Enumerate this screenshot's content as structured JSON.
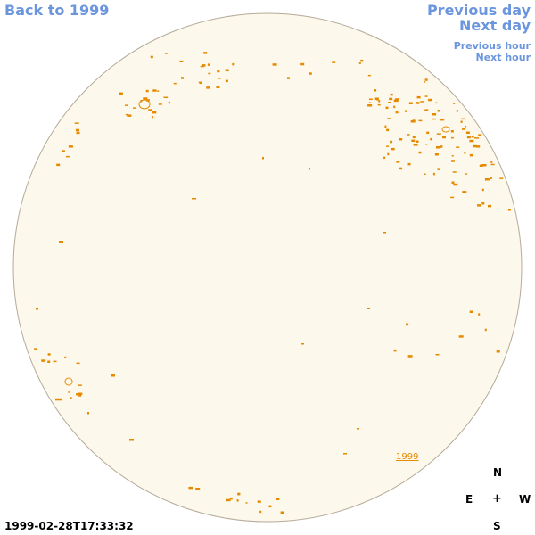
{
  "nav": {
    "back": "Back to 1999",
    "previous_day": "Previous day",
    "next_day": "Next day",
    "previous_hour": "Previous hour",
    "next_hour": "Next hour"
  },
  "compass": {
    "north": "N",
    "east": "E",
    "center": "+",
    "west": "W",
    "south": "S"
  },
  "timestamp": "1999-02-28T17:33:32",
  "region_label": "1999",
  "colors": {
    "disc_fill": "#fdf8ec",
    "disc_edge": "#b4aa98",
    "feature": "#e58a00",
    "nav_link": "#6b96de"
  }
}
